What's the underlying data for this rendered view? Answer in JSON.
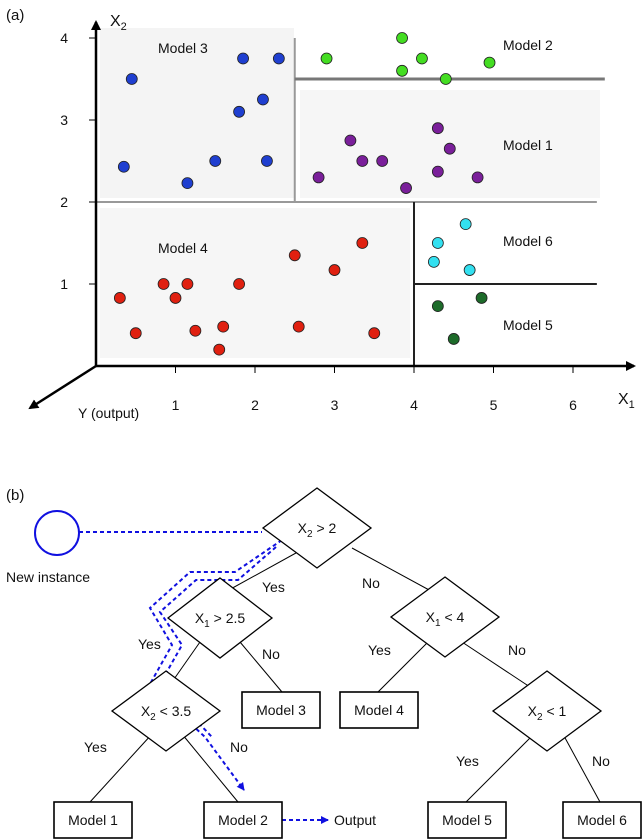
{
  "panel_a": {
    "label": "(a)",
    "x_axis_label": "X",
    "x_axis_sub": "1",
    "y_axis_label": "X",
    "y_axis_sub": "2",
    "z_axis_label": "Y (output)",
    "x_ticks": [
      "1",
      "2",
      "3",
      "4",
      "5",
      "6"
    ],
    "y_ticks": [
      "1",
      "2",
      "3",
      "4"
    ],
    "regions": [
      {
        "name": "Model 3",
        "color": "#1f3fd0"
      },
      {
        "name": "Model 2",
        "color": "#44dd22"
      },
      {
        "name": "Model 1",
        "color": "#7a1f9a"
      },
      {
        "name": "Model 6",
        "color": "#33e0f0"
      },
      {
        "name": "Model 5",
        "color": "#1d6b2a"
      },
      {
        "name": "Model 4",
        "color": "#e02010"
      }
    ],
    "split_lines": [
      {
        "x": [
          0,
          6.3
        ],
        "y": [
          2,
          2
        ]
      },
      {
        "x": [
          2.5,
          2.5
        ],
        "y": [
          2,
          4
        ]
      },
      {
        "x": [
          2.5,
          6.4
        ],
        "y": [
          3.5,
          3.5
        ]
      },
      {
        "x": [
          4,
          4
        ],
        "y": [
          0,
          2
        ]
      },
      {
        "x": [
          4,
          6.3
        ],
        "y": [
          1,
          1
        ]
      }
    ],
    "points": {
      "Model 3": [
        [
          0.45,
          3.5
        ],
        [
          1.85,
          3.75
        ],
        [
          2.3,
          3.75
        ],
        [
          1.8,
          3.1
        ],
        [
          2.1,
          3.25
        ],
        [
          0.35,
          2.43
        ],
        [
          1.5,
          2.5
        ],
        [
          2.15,
          2.5
        ],
        [
          1.15,
          2.23
        ]
      ],
      "Model 2": [
        [
          2.9,
          3.75
        ],
        [
          3.85,
          4.0
        ],
        [
          4.1,
          3.75
        ],
        [
          3.85,
          3.6
        ],
        [
          4.4,
          3.5
        ],
        [
          4.95,
          3.7
        ]
      ],
      "Model 1": [
        [
          3.2,
          2.75
        ],
        [
          4.3,
          2.9
        ],
        [
          3.35,
          2.5
        ],
        [
          3.6,
          2.5
        ],
        [
          4.45,
          2.65
        ],
        [
          2.8,
          2.3
        ],
        [
          3.9,
          2.17
        ],
        [
          4.3,
          2.37
        ],
        [
          4.8,
          2.3
        ]
      ],
      "Model 6": [
        [
          4.65,
          1.73
        ],
        [
          4.3,
          1.5
        ],
        [
          4.25,
          1.27
        ],
        [
          4.7,
          1.17
        ]
      ],
      "Model 5": [
        [
          4.3,
          0.73
        ],
        [
          4.85,
          0.83
        ],
        [
          4.5,
          0.33
        ]
      ],
      "Model 4": [
        [
          3.35,
          1.5
        ],
        [
          2.5,
          1.35
        ],
        [
          3.0,
          1.17
        ],
        [
          0.3,
          0.83
        ],
        [
          0.85,
          1.0
        ],
        [
          1.15,
          1.0
        ],
        [
          1.8,
          1.0
        ],
        [
          1.0,
          0.83
        ],
        [
          0.5,
          0.4
        ],
        [
          1.25,
          0.43
        ],
        [
          1.6,
          0.48
        ],
        [
          2.55,
          0.48
        ],
        [
          3.5,
          0.4
        ],
        [
          1.55,
          0.2
        ]
      ]
    }
  },
  "panel_b": {
    "label": "(b)",
    "new_instance_label": "New instance",
    "output_label": "Output",
    "path_color": "#1010e0",
    "nodes": {
      "root": {
        "var": "X",
        "sub": "2",
        "op": " > 2"
      },
      "left": {
        "var": "X",
        "sub": "1",
        "op": " > 2.5"
      },
      "right": {
        "var": "X",
        "sub": "1",
        "op": " < 4"
      },
      "ll": {
        "var": "X",
        "sub": "2",
        "op": " < 3.5"
      },
      "rr": {
        "var": "X",
        "sub": "2",
        "op": " < 1"
      }
    },
    "leaves": {
      "m1": "Model 1",
      "m2": "Model 2",
      "m3": "Model 3",
      "m4": "Model 4",
      "m5": "Model 5",
      "m6": "Model 6"
    },
    "edge_labels": {
      "root_left": "Yes",
      "root_right": "No",
      "left_ll": "Yes",
      "left_m3": "No",
      "right_m4": "Yes",
      "right_rr": "No",
      "ll_m1": "Yes",
      "ll_m2": "No",
      "rr_m5": "Yes",
      "rr_m6": "No"
    }
  }
}
